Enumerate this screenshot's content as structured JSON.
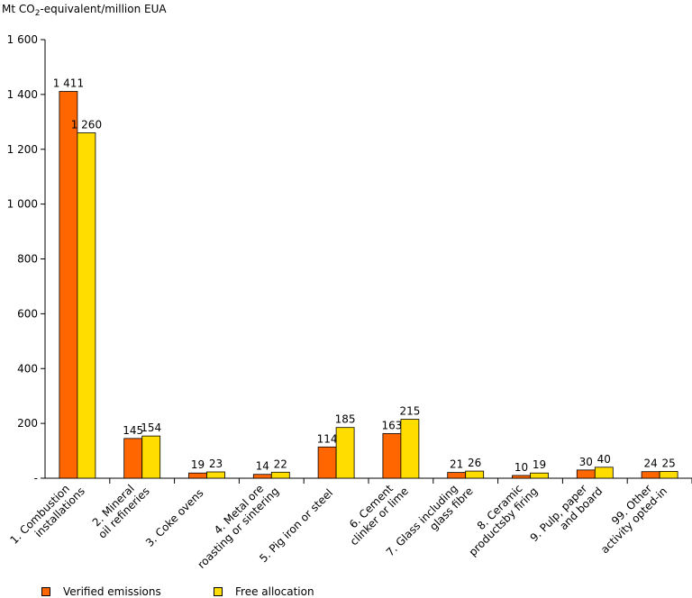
{
  "chart_data": {
    "type": "bar",
    "ylabel": "Mt CO₂-equivalent/million EUA",
    "ylim": [
      0,
      1600
    ],
    "yticks": [
      0,
      200,
      400,
      600,
      800,
      1000,
      1200,
      1400,
      1600
    ],
    "ytick_labels": [
      "-",
      "200",
      "400",
      "600",
      "800",
      "1 000",
      "1 200",
      "1 400",
      "1 600"
    ],
    "grid": false,
    "legend_position": "bottom",
    "categories": [
      [
        "1. Combustion",
        "installations"
      ],
      [
        "2. Mineral",
        "oil refineries"
      ],
      [
        "3. Coke ovens"
      ],
      [
        "4. Metal ore",
        "roasting or sintering"
      ],
      [
        "5. Pig iron or steel"
      ],
      [
        "6. Cement",
        "clinker or lime"
      ],
      [
        "7. Glass including",
        "glass fibre"
      ],
      [
        "8. Ceramic",
        "productsby firing"
      ],
      [
        "9. Pulp, paper",
        "and board"
      ],
      [
        "99. Other",
        "activity opted-in"
      ]
    ],
    "series": [
      {
        "name": "Verified emissions",
        "color": "#ff6600",
        "values": [
          1411,
          145,
          19,
          14,
          114,
          163,
          21,
          10,
          30,
          24
        ],
        "labels": [
          "1 411",
          "145",
          "19",
          "14",
          "114",
          "163",
          "21",
          "10",
          "30",
          "24"
        ]
      },
      {
        "name": "Free allocation",
        "color": "#ffdd00",
        "values": [
          1260,
          154,
          23,
          22,
          185,
          215,
          26,
          19,
          40,
          25
        ],
        "labels": [
          "1 260",
          "154",
          "23",
          "22",
          "185",
          "215",
          "26",
          "19",
          "40",
          "25"
        ]
      }
    ]
  }
}
